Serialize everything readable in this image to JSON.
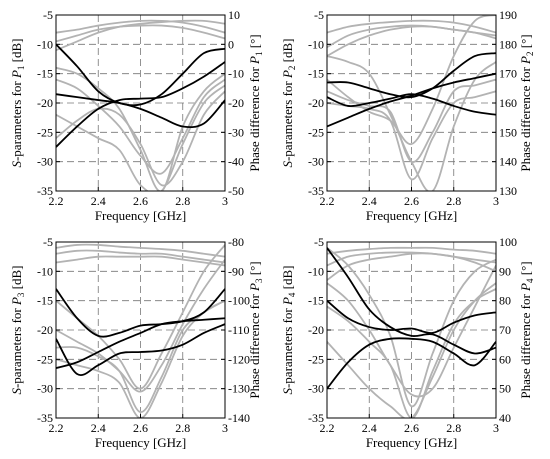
{
  "colors": {
    "s_curves": "#b3b3b3",
    "phase_curves": "#000000",
    "grid": "#777777",
    "frame": "#000000"
  },
  "chart_data": [
    {
      "type": "line",
      "xlabel": "Frequency [GHz]",
      "ylabel_left": {
        "prefix": "S",
        "middle": "-parameters for ",
        "port": "P",
        "sub": "1",
        "unit": " [dB]"
      },
      "ylabel_right": {
        "text": "Phase difference for ",
        "port": "P",
        "sub": "1",
        "unit": " [°]"
      },
      "xlim": [
        2.2,
        3.0
      ],
      "ylim_left": [
        -35,
        -5
      ],
      "ylim_right": [
        -50,
        10
      ],
      "xticks": [
        "2.2",
        "2.4",
        "2.6",
        "2.8",
        "3"
      ],
      "yticks_left": [
        "-35",
        "-30",
        "-25",
        "-20",
        "-15",
        "-10",
        "-5"
      ],
      "yticks_right": [
        "-50",
        "-40",
        "-30",
        "-20",
        "-10",
        "0",
        "10"
      ],
      "x": [
        2.2,
        2.3,
        2.4,
        2.5,
        2.6,
        2.7,
        2.8,
        2.9,
        3.0
      ],
      "s_series": [
        {
          "values": [
            -8.0,
            -7.5,
            -6.8,
            -6.3,
            -6.0,
            -6.0,
            -6.3,
            -7.0,
            -8.0
          ]
        },
        {
          "values": [
            -9.5,
            -8.5,
            -7.5,
            -7.0,
            -6.8,
            -6.8,
            -7.2,
            -8.0,
            -9.0
          ]
        },
        {
          "values": [
            -11.0,
            -9.5,
            -8.0,
            -7.0,
            -6.5,
            -6.2,
            -6.0,
            -6.0,
            -6.5
          ]
        },
        {
          "values": [
            -14.0,
            -15.0,
            -17.5,
            -21.0,
            -28.0,
            -35.0,
            -24.0,
            -18.0,
            -15.0
          ]
        },
        {
          "values": [
            -16.0,
            -17.5,
            -20.5,
            -24.0,
            -29.0,
            -32.0,
            -26.0,
            -19.0,
            -16.0
          ]
        },
        {
          "values": [
            -22.0,
            -24.0,
            -26.0,
            -28.0,
            -34.0,
            -35.0,
            -27.0,
            -20.0,
            -17.0
          ]
        },
        {
          "values": [
            -26.0,
            -23.0,
            -21.0,
            -22.0,
            -27.0,
            -34.0,
            -30.0,
            -22.0,
            -18.0
          ]
        }
      ],
      "phase_series": [
        {
          "values": [
            0.0,
            -7.5,
            -16.0,
            -20.0,
            -20.5,
            -17.0,
            -10.0,
            -3.0,
            -1.5
          ]
        },
        {
          "values": [
            -35.0,
            -28.0,
            -22.0,
            -19.0,
            -18.5,
            -18.0,
            -15.0,
            -11.0,
            -6.0
          ]
        },
        {
          "values": [
            -17.0,
            -18.0,
            -19.0,
            -20.0,
            -22.0,
            -25.0,
            -28.0,
            -27.0,
            -19.0
          ]
        }
      ]
    },
    {
      "type": "line",
      "xlabel": "Frequency [GHz]",
      "ylabel_left": {
        "prefix": "S",
        "middle": "-parameters for ",
        "port": "P",
        "sub": "2",
        "unit": " [dB]"
      },
      "ylabel_right": {
        "text": "Phase difference for ",
        "port": "P",
        "sub": "2",
        "unit": " [°]"
      },
      "xlim": [
        2.2,
        3.0
      ],
      "ylim_left": [
        -35,
        -5
      ],
      "ylim_right": [
        130,
        190
      ],
      "xticks": [
        "2.2",
        "2.4",
        "2.6",
        "2.8",
        "3"
      ],
      "yticks_left": [
        "-35",
        "-30",
        "-25",
        "-20",
        "-15",
        "-10",
        "-5"
      ],
      "yticks_right": [
        "130",
        "140",
        "150",
        "160",
        "170",
        "180",
        "190"
      ],
      "x": [
        2.2,
        2.3,
        2.4,
        2.5,
        2.6,
        2.7,
        2.8,
        2.9,
        3.0
      ],
      "s_series": [
        {
          "values": [
            -8.0,
            -7.0,
            -6.5,
            -6.2,
            -6.0,
            -6.0,
            -6.3,
            -7.0,
            -8.0
          ]
        },
        {
          "values": [
            -10.5,
            -8.5,
            -7.5,
            -7.0,
            -6.8,
            -7.0,
            -7.5,
            -8.0,
            -9.0
          ]
        },
        {
          "values": [
            -12.0,
            -10.0,
            -8.5,
            -7.5,
            -7.0,
            -7.0,
            -7.5,
            -8.0,
            -8.5
          ]
        },
        {
          "values": [
            -16.0,
            -19.0,
            -21.5,
            -23.0,
            -27.0,
            -21.0,
            -12.0,
            -6.0,
            -5.0
          ]
        },
        {
          "values": [
            -18.0,
            -19.5,
            -20.5,
            -21.5,
            -30.0,
            -25.0,
            -18.0,
            -17.0,
            -16.0
          ]
        },
        {
          "values": [
            -20.0,
            -20.5,
            -21.0,
            -23.0,
            -33.0,
            -26.0,
            -20.0,
            -19.0,
            -18.0
          ]
        },
        {
          "values": [
            -12.0,
            -13.0,
            -15.0,
            -22.0,
            -30.0,
            -35.0,
            -24.0,
            -16.0,
            -13.0
          ]
        }
      ],
      "phase_series": [
        {
          "values": [
            152.0,
            155.0,
            158.0,
            160.5,
            162.5,
            165.0,
            167.0,
            168.5,
            170.0
          ]
        },
        {
          "values": [
            167.0,
            167.0,
            165.0,
            163.0,
            162.0,
            165.0,
            171.0,
            176.0,
            177.0
          ]
        },
        {
          "values": [
            162.0,
            159.0,
            160.0,
            161.5,
            163.0,
            161.5,
            159.0,
            157.0,
            156.0
          ]
        }
      ]
    },
    {
      "type": "line",
      "xlabel": "Frequency [GHz]",
      "ylabel_left": {
        "prefix": "S",
        "middle": "-parameters for ",
        "port": "P",
        "sub": "3",
        "unit": " [dB]"
      },
      "ylabel_right": {
        "text": "Phase difference for ",
        "port": "P",
        "sub": "3",
        "unit": " [°]"
      },
      "xlim": [
        2.2,
        3.0
      ],
      "ylim_left": [
        -35,
        -5
      ],
      "ylim_right": [
        -140,
        -80
      ],
      "xticks": [
        "2.2",
        "2.4",
        "2.6",
        "2.8",
        "3"
      ],
      "yticks_left": [
        "-35",
        "-30",
        "-25",
        "-20",
        "-15",
        "-10",
        "-5"
      ],
      "yticks_right": [
        "-140",
        "-130",
        "-120",
        "-110",
        "-100",
        "-90",
        "-80"
      ],
      "x": [
        2.2,
        2.3,
        2.4,
        2.5,
        2.6,
        2.7,
        2.8,
        2.9,
        3.0
      ],
      "s_series": [
        {
          "values": [
            -6.0,
            -5.5,
            -5.5,
            -5.8,
            -6.0,
            -6.2,
            -6.5,
            -7.0,
            -7.5
          ]
        },
        {
          "values": [
            -7.0,
            -6.5,
            -6.5,
            -6.8,
            -7.0,
            -7.0,
            -7.5,
            -8.0,
            -8.5
          ]
        },
        {
          "values": [
            -8.5,
            -8.0,
            -7.5,
            -7.5,
            -7.5,
            -7.5,
            -8.0,
            -8.5,
            -9.0
          ]
        },
        {
          "values": [
            -15.0,
            -18.0,
            -21.0,
            -25.0,
            -30.0,
            -24.0,
            -17.0,
            -10.0,
            -5.5
          ]
        },
        {
          "values": [
            -20.0,
            -22.0,
            -24.0,
            -27.0,
            -30.5,
            -26.0,
            -19.0,
            -13.0,
            -8.0
          ]
        },
        {
          "values": [
            -23.0,
            -23.0,
            -24.5,
            -27.0,
            -34.0,
            -28.0,
            -20.0,
            -17.0,
            -15.0
          ]
        },
        {
          "values": [
            -25.0,
            -26.0,
            -27.0,
            -29.0,
            -35.0,
            -29.0,
            -21.0,
            -17.0,
            -15.0
          ]
        }
      ],
      "phase_series": [
        {
          "values": [
            -96.0,
            -106.0,
            -112.0,
            -111.0,
            -108.5,
            -108.0,
            -107.0,
            -104.0,
            -96.0
          ]
        },
        {
          "values": [
            -123.0,
            -121.0,
            -117.5,
            -114.0,
            -111.0,
            -108.0,
            -107.0,
            -106.5,
            -106.0
          ]
        },
        {
          "values": [
            -113.0,
            -125.0,
            -122.0,
            -118.0,
            -117.5,
            -117.0,
            -115.0,
            -111.0,
            -108.0
          ]
        }
      ]
    },
    {
      "type": "line",
      "xlabel": "Frequency [GHz]",
      "ylabel_left": {
        "prefix": "S",
        "middle": "-parameters for ",
        "port": "P",
        "sub": "4",
        "unit": " [dB]"
      },
      "ylabel_right": {
        "text": "Phase difference for ",
        "port": "P",
        "sub": "4",
        "unit": " [°]"
      },
      "xlim": [
        2.2,
        3.0
      ],
      "ylim_left": [
        -35,
        -5
      ],
      "ylim_right": [
        40,
        100
      ],
      "xticks": [
        "2.2",
        "2.4",
        "2.6",
        "2.8",
        "3"
      ],
      "yticks_left": [
        "-35",
        "-30",
        "-25",
        "-20",
        "-15",
        "-10",
        "-5"
      ],
      "yticks_right": [
        "40",
        "50",
        "60",
        "70",
        "80",
        "90",
        "100"
      ],
      "x": [
        2.2,
        2.3,
        2.4,
        2.5,
        2.6,
        2.7,
        2.8,
        2.9,
        3.0
      ],
      "s_series": [
        {
          "values": [
            -7.0,
            -6.5,
            -6.2,
            -6.0,
            -6.0,
            -6.0,
            -6.3,
            -6.5,
            -7.0
          ]
        },
        {
          "values": [
            -9.0,
            -7.5,
            -7.0,
            -6.8,
            -6.8,
            -7.0,
            -7.5,
            -8.0,
            -8.5
          ]
        },
        {
          "values": [
            -11.5,
            -9.0,
            -8.0,
            -7.5,
            -7.0,
            -7.0,
            -7.5,
            -8.5,
            -10.0
          ]
        },
        {
          "values": [
            -6.0,
            -9.0,
            -14.0,
            -21.0,
            -33.0,
            -24.0,
            -15.0,
            -10.0,
            -8.0
          ]
        },
        {
          "values": [
            -16.0,
            -18.5,
            -22.0,
            -26.0,
            -35.0,
            -27.0,
            -19.0,
            -15.0,
            -13.0
          ]
        },
        {
          "values": [
            -22.0,
            -26.0,
            -30.0,
            -33.0,
            -35.0,
            -28.0,
            -20.0,
            -15.0,
            -12.0
          ]
        },
        {
          "values": [
            -12.0,
            -15.0,
            -20.0,
            -26.0,
            -31.0,
            -30.0,
            -23.0,
            -16.0,
            -9.0
          ]
        }
      ],
      "phase_series": [
        {
          "values": [
            98.0,
            88.0,
            77.0,
            71.0,
            68.0,
            68.5,
            65.0,
            62.0,
            64.0
          ]
        },
        {
          "values": [
            80.0,
            74.0,
            71.0,
            70.0,
            70.5,
            69.0,
            72.5,
            75.0,
            76.0
          ]
        },
        {
          "values": [
            50.0,
            59.0,
            65.0,
            67.0,
            67.0,
            66.0,
            62.0,
            58.0,
            66.0
          ]
        }
      ]
    }
  ]
}
